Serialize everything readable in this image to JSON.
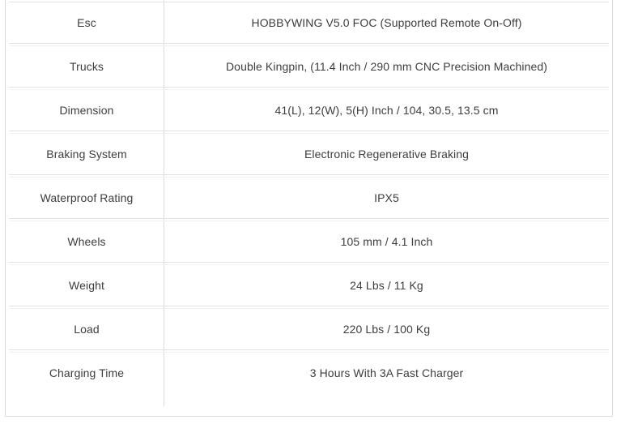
{
  "table": {
    "rows": [
      {
        "label": "Esc",
        "value": "HOBBYWING V5.0 FOC (Supported Remote On-Off)"
      },
      {
        "label": "Trucks",
        "value": "Double Kingpin, (11.4 Inch / 290 mm CNC Precision Machined)"
      },
      {
        "label": "Dimension",
        "value": "41(L), 12(W), 5(H) Inch / 104, 30.5, 13.5 cm"
      },
      {
        "label": "Braking System",
        "value": "Electronic Regenerative Braking"
      },
      {
        "label": "Waterproof Rating",
        "value": "IPX5"
      },
      {
        "label": "Wheels",
        "value": "105 mm / 4.1 Inch"
      },
      {
        "label": "Weight",
        "value": "24 Lbs / 11 Kg"
      },
      {
        "label": "Load",
        "value": "220 Lbs / 100 Kg"
      },
      {
        "label": "Charging Time",
        "value": "3 Hours With 3A Fast Charger"
      }
    ]
  },
  "colors": {
    "border_outer": "#dcdcdc",
    "border_row_dark": "#e2e2e2",
    "border_row_light": "#f1f1f1",
    "text": "#3d3d3d",
    "background": "#ffffff"
  }
}
